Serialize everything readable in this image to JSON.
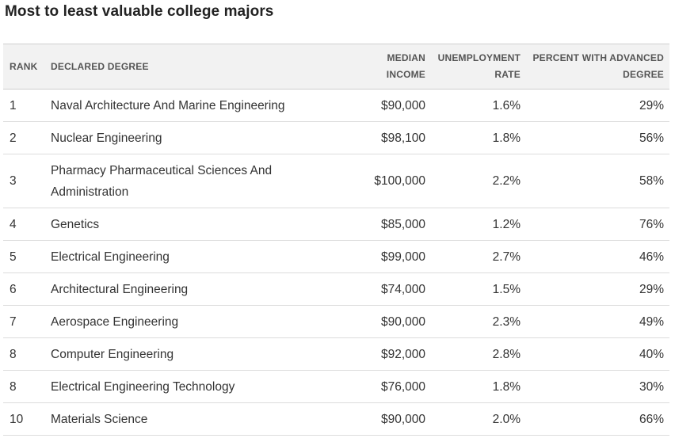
{
  "title": "Most to least valuable college majors",
  "chart_data": {
    "type": "table",
    "title": "Most to least valuable college majors",
    "columns": [
      "RANK",
      "DECLARED DEGREE",
      "MEDIAN INCOME",
      "UNEMPLOYMENT RATE",
      "PERCENT WITH ADVANCED DEGREE"
    ],
    "rows": [
      {
        "rank": "1",
        "degree": "Naval Architecture And Marine Engineering",
        "income": "$90,000",
        "unemployment": "1.6%",
        "advanced": "29%"
      },
      {
        "rank": "2",
        "degree": "Nuclear Engineering",
        "income": "$98,100",
        "unemployment": "1.8%",
        "advanced": "56%"
      },
      {
        "rank": "3",
        "degree": "Pharmacy Pharmaceutical Sciences And Administration",
        "income": "$100,000",
        "unemployment": "2.2%",
        "advanced": "58%"
      },
      {
        "rank": "4",
        "degree": "Genetics",
        "income": "$85,000",
        "unemployment": "1.2%",
        "advanced": "76%"
      },
      {
        "rank": "5",
        "degree": "Electrical Engineering",
        "income": "$99,000",
        "unemployment": "2.7%",
        "advanced": "46%"
      },
      {
        "rank": "6",
        "degree": "Architectural Engineering",
        "income": "$74,000",
        "unemployment": "1.5%",
        "advanced": "29%"
      },
      {
        "rank": "7",
        "degree": "Aerospace Engineering",
        "income": "$90,000",
        "unemployment": "2.3%",
        "advanced": "49%"
      },
      {
        "rank": "8",
        "degree": "Computer Engineering",
        "income": "$92,000",
        "unemployment": "2.8%",
        "advanced": "40%"
      },
      {
        "rank": "8",
        "degree": "Electrical Engineering Technology",
        "income": "$76,000",
        "unemployment": "1.8%",
        "advanced": "30%"
      },
      {
        "rank": "10",
        "degree": "Materials Science",
        "income": "$90,000",
        "unemployment": "2.0%",
        "advanced": "66%"
      }
    ]
  }
}
